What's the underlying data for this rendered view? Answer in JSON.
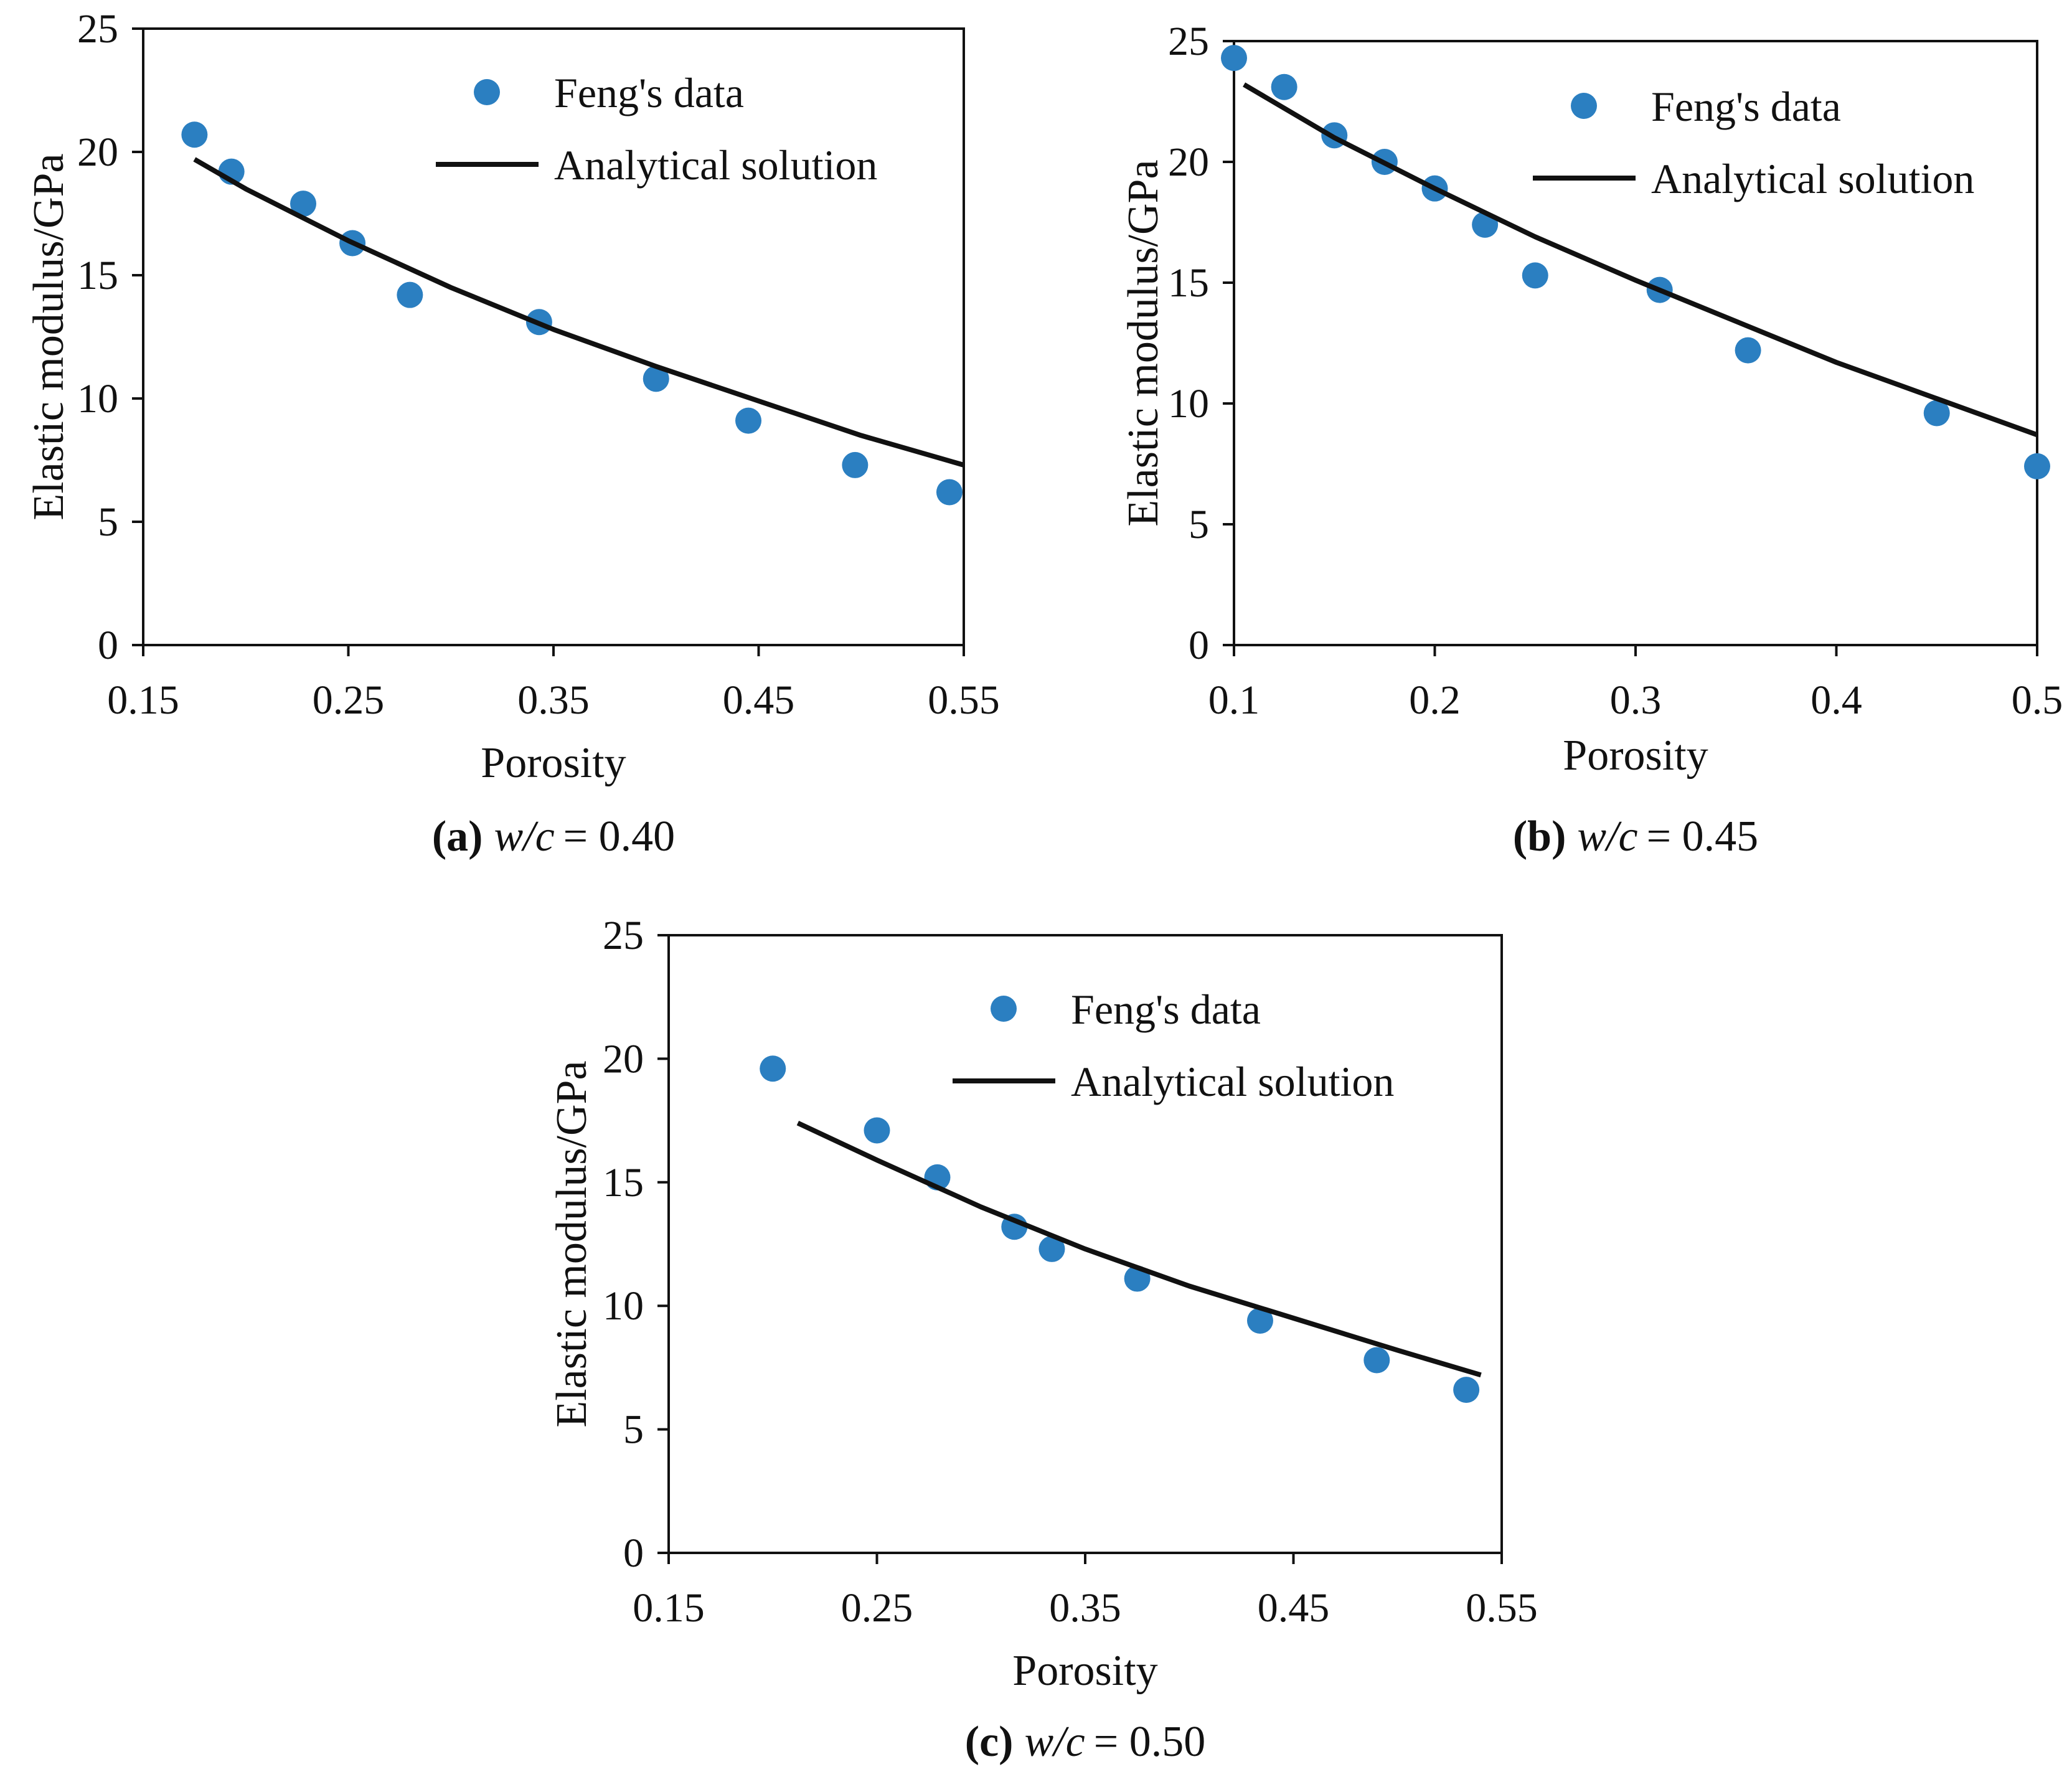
{
  "figure": {
    "background": "#ffffff",
    "marker_color": "#2b7fc1",
    "line_color": "#111111"
  },
  "chart_data": [
    {
      "id": "a",
      "type": "scatter",
      "caption": {
        "label": "(a)",
        "var": "w/c",
        "eq": "= 0.40"
      },
      "xlabel": "Porosity",
      "ylabel": "Elastic modulus/GPa",
      "xlim": [
        0.15,
        0.55
      ],
      "ylim": [
        0,
        25
      ],
      "xticks": [
        "0.15",
        "0.25",
        "0.35",
        "0.45",
        "0.55"
      ],
      "yticks": [
        "0",
        "5",
        "10",
        "15",
        "20",
        "25"
      ],
      "legend": {
        "position": "top-right",
        "entries": [
          "Feng's data",
          "Analytical solution"
        ]
      },
      "series": [
        {
          "name": "Feng's data",
          "kind": "points",
          "x": [
            0.175,
            0.193,
            0.228,
            0.252,
            0.28,
            0.343,
            0.4,
            0.445,
            0.497,
            0.543
          ],
          "y": [
            20.7,
            19.2,
            17.9,
            16.3,
            14.2,
            13.1,
            10.8,
            9.1,
            7.3,
            6.2
          ]
        },
        {
          "name": "Analytical solution",
          "kind": "line",
          "x": [
            0.175,
            0.2,
            0.25,
            0.3,
            0.35,
            0.4,
            0.45,
            0.5,
            0.55
          ],
          "y": [
            19.7,
            18.5,
            16.4,
            14.5,
            12.8,
            11.3,
            9.9,
            8.5,
            7.3
          ]
        }
      ]
    },
    {
      "id": "b",
      "type": "scatter",
      "caption": {
        "label": "(b)",
        "var": "w/c",
        "eq": "= 0.45"
      },
      "xlabel": "Porosity",
      "ylabel": "Elastic modulus/GPa",
      "xlim": [
        0.1,
        0.5
      ],
      "ylim": [
        0,
        25
      ],
      "xticks": [
        "0.1",
        "0.2",
        "0.3",
        "0.4",
        "0.5"
      ],
      "yticks": [
        "0",
        "5",
        "10",
        "15",
        "20",
        "25"
      ],
      "legend": {
        "position": "top-right",
        "entries": [
          "Feng's data",
          "Analytical solution"
        ]
      },
      "series": [
        {
          "name": "Feng's data",
          "kind": "points",
          "x": [
            0.1,
            0.125,
            0.15,
            0.175,
            0.2,
            0.225,
            0.25,
            0.312,
            0.356,
            0.45,
            0.5
          ],
          "y": [
            24.3,
            23.1,
            21.1,
            20.0,
            18.9,
            17.4,
            15.3,
            14.7,
            12.2,
            9.6,
            7.4
          ]
        },
        {
          "name": "Analytical solution",
          "kind": "line",
          "x": [
            0.105,
            0.15,
            0.2,
            0.25,
            0.3,
            0.35,
            0.4,
            0.45,
            0.5
          ],
          "y": [
            23.2,
            21.0,
            18.9,
            16.9,
            15.1,
            13.4,
            11.7,
            10.2,
            8.7
          ]
        }
      ]
    },
    {
      "id": "c",
      "type": "scatter",
      "caption": {
        "label": "(c)",
        "var": "w/c",
        "eq": "= 0.50"
      },
      "xlabel": "Porosity",
      "ylabel": "Elastic modulus/GPa",
      "xlim": [
        0.15,
        0.55
      ],
      "ylim": [
        0,
        25
      ],
      "xticks": [
        "0.15",
        "0.25",
        "0.35",
        "0.45",
        "0.55"
      ],
      "yticks": [
        "0",
        "5",
        "10",
        "15",
        "20",
        "25"
      ],
      "legend": {
        "position": "top-right",
        "entries": [
          "Feng's data",
          "Analytical solution"
        ]
      },
      "series": [
        {
          "name": "Feng's data",
          "kind": "points",
          "x": [
            0.2,
            0.25,
            0.279,
            0.316,
            0.334,
            0.375,
            0.434,
            0.49,
            0.533
          ],
          "y": [
            19.6,
            17.1,
            15.2,
            13.2,
            12.3,
            11.1,
            9.4,
            7.8,
            6.6
          ]
        },
        {
          "name": "Analytical solution",
          "kind": "line",
          "x": [
            0.212,
            0.25,
            0.3,
            0.35,
            0.4,
            0.45,
            0.5,
            0.54
          ],
          "y": [
            17.4,
            15.9,
            14.0,
            12.3,
            10.8,
            9.5,
            8.2,
            7.2
          ]
        }
      ]
    }
  ]
}
